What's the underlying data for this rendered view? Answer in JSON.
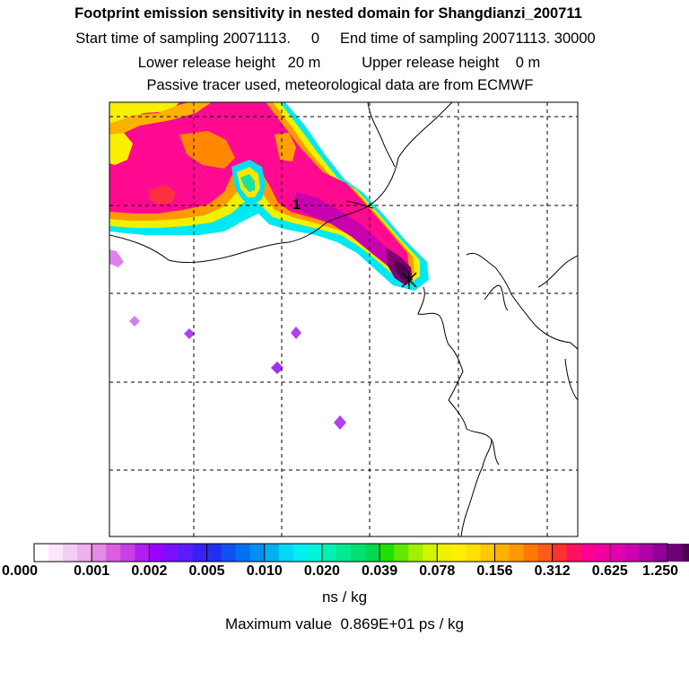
{
  "titles": {
    "line1": "Footprint emission sensitivity in nested domain for Shangdianzi_200711",
    "line2": "Start time of sampling 20071113.     0     End time of sampling 20071113. 30000",
    "line3": "Lower release height   20 m          Upper release height    0 m",
    "line4": "Passive tracer used, meteorological data are from ECMWF"
  },
  "map": {
    "receptor_label": "1",
    "receptor_marker": "receptor-star"
  },
  "colorbar": {
    "ticks": [
      "0.000",
      "0.001",
      "0.002",
      "0.005",
      "0.010",
      "0.020",
      "0.039",
      "0.078",
      "0.156",
      "0.312",
      "0.625",
      "1.250"
    ],
    "colors": [
      "#ffffff",
      "#fbe6fb",
      "#f5ccf5",
      "#eeb0ee",
      "#e58ae5",
      "#d95fe0",
      "#c841e6",
      "#b01ef0",
      "#9a00ff",
      "#7a10ff",
      "#5a1cff",
      "#3a20f5",
      "#2030f0",
      "#1050f0",
      "#0070f0",
      "#0090f0",
      "#00b0f0",
      "#00d8f5",
      "#00f0f0",
      "#00f5d8",
      "#00f0b0",
      "#00e890",
      "#00e070",
      "#00d850",
      "#20e000",
      "#60e800",
      "#a0f000",
      "#d0f500",
      "#f0f000",
      "#fff000",
      "#ffe000",
      "#ffc800",
      "#ffb000",
      "#ff9800",
      "#ff7800",
      "#ff5a20",
      "#ff3030",
      "#ff1060",
      "#ff0090",
      "#f000a0",
      "#e000b0",
      "#cc00b0",
      "#b000a8",
      "#900098",
      "#700078",
      "#500050"
    ],
    "units": "ns / kg"
  },
  "footer": {
    "max_value": "Maximum value  0.869E+01 ps / kg"
  }
}
